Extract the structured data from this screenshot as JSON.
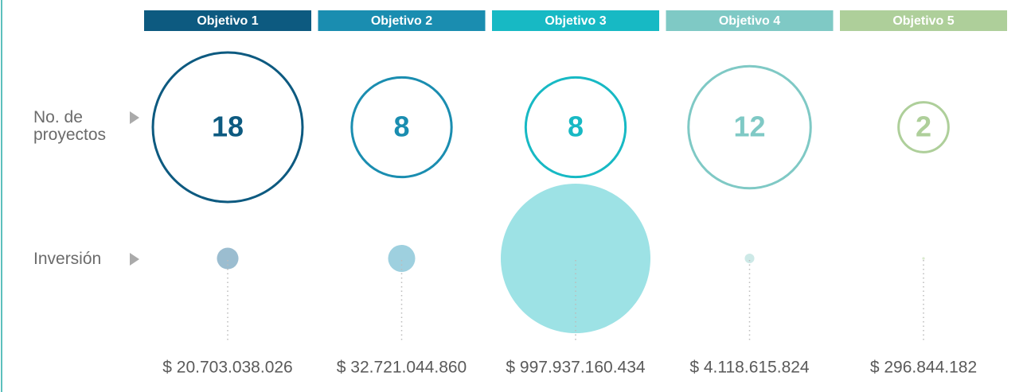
{
  "chart_data": {
    "type": "bubble",
    "categories": [
      "Objetivo 1",
      "Objetivo 2",
      "Objetivo 3",
      "Objetivo 4",
      "Objetivo 5"
    ],
    "colors": [
      "#0d5a80",
      "#1a8db0",
      "#17b9c4",
      "#7fc9c5",
      "#aecf9a"
    ],
    "series": [
      {
        "name": "No. de proyectos",
        "values": [
          18,
          8,
          8,
          12,
          2
        ]
      },
      {
        "name": "Inversión",
        "values": [
          20703038026,
          32721044860,
          997937160434,
          4118615824,
          296844182
        ],
        "value_labels": [
          "$ 20.703.038.026",
          "$ 32.721.044.860",
          "$ 997.937.160.434",
          "$ 4.118.615.824",
          "$ 296.844.182"
        ],
        "colors": [
          "#9bbdd0",
          "#9ed0df",
          "#9de2e5",
          "#cde9e7",
          "#dbeacf"
        ]
      }
    ]
  }
}
